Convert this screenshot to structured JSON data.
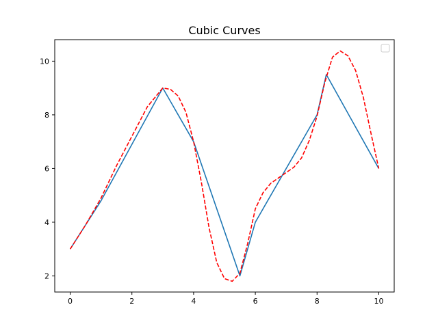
{
  "chart_data": {
    "type": "line",
    "title": "Cubic Curves",
    "xlabel": "",
    "ylabel": "",
    "xlim": [
      -0.5,
      10.5
    ],
    "ylim": [
      1.4,
      10.8
    ],
    "xticks": [
      0,
      2,
      4,
      6,
      8,
      10
    ],
    "yticks": [
      2,
      4,
      6,
      8,
      10
    ],
    "grid": false,
    "legend": {
      "placement": "top-right",
      "entries": []
    },
    "series": [
      {
        "style": "solid",
        "color": "#1f77b4",
        "x": [
          0,
          1,
          3,
          4,
          5.5,
          6,
          8,
          8.3,
          10
        ],
        "y": [
          3,
          4.8,
          9,
          7,
          2,
          4,
          8,
          9.5,
          6
        ]
      },
      {
        "style": "dashed",
        "color": "#ff0000",
        "x": [
          0,
          0.5,
          1,
          1.5,
          2,
          2.5,
          3,
          3.25,
          3.5,
          3.75,
          4,
          4.25,
          4.5,
          4.75,
          5,
          5.25,
          5.5,
          5.75,
          6,
          6.25,
          6.5,
          6.75,
          7,
          7.25,
          7.5,
          7.75,
          8,
          8.25,
          8.5,
          8.75,
          9,
          9.25,
          9.5,
          9.75,
          10
        ],
        "y": [
          3,
          3.9,
          4.9,
          6.1,
          7.2,
          8.3,
          9.0,
          8.95,
          8.7,
          8.1,
          7.0,
          5.5,
          3.8,
          2.5,
          1.9,
          1.8,
          2.1,
          3.2,
          4.5,
          5.1,
          5.45,
          5.65,
          5.85,
          6.05,
          6.4,
          7.05,
          7.95,
          9.2,
          10.15,
          10.38,
          10.2,
          9.65,
          8.65,
          7.3,
          6.0
        ]
      }
    ]
  }
}
